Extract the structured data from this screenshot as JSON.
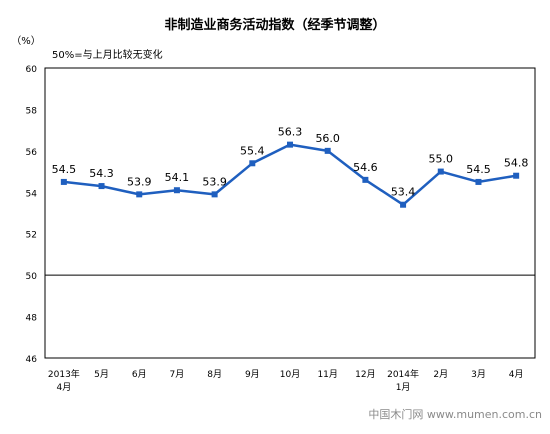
{
  "chart_data": {
    "type": "line",
    "title": "非制造业商务活动指数（经季节调整）",
    "unit": "（%）",
    "annotation": "50%=与上月比较无变化",
    "categories": [
      [
        "2013年",
        "4月"
      ],
      [
        "5月"
      ],
      [
        "6月"
      ],
      [
        "7月"
      ],
      [
        "8月"
      ],
      [
        "9月"
      ],
      [
        "10月"
      ],
      [
        "11月"
      ],
      [
        "12月"
      ],
      [
        "2014年",
        "1月"
      ],
      [
        "2月"
      ],
      [
        "3月"
      ],
      [
        "4月"
      ]
    ],
    "values": [
      54.5,
      54.3,
      53.9,
      54.1,
      53.9,
      55.4,
      56.3,
      56.0,
      54.6,
      53.4,
      55.0,
      54.5,
      54.8
    ],
    "value_labels": [
      "54.5",
      "54.3",
      "53.9",
      "54.1",
      "53.9",
      "55.4",
      "56.3",
      "56.0",
      "54.6",
      "53.4",
      "55.0",
      "54.5",
      "54.8"
    ],
    "ylim": [
      46,
      60
    ],
    "yticks": [
      "46",
      "48",
      "50",
      "52",
      "54",
      "56",
      "58",
      "60"
    ],
    "reference_line": 50,
    "grid": false,
    "legend": "none",
    "line_color": "#1f5fbf"
  },
  "watermark": "中国木门网 www.mumen.com.cn"
}
